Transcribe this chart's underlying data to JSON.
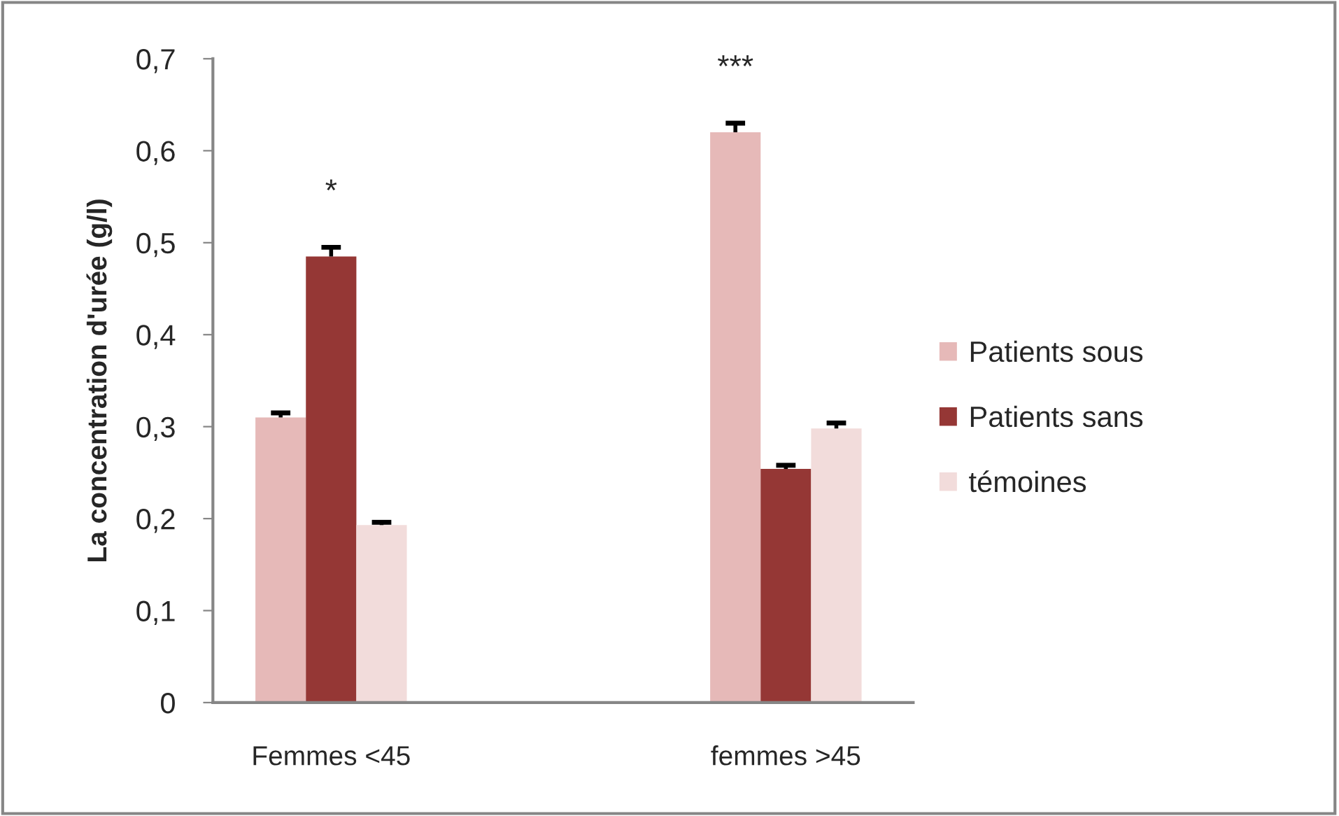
{
  "chart_data": {
    "type": "bar",
    "ylabel": "La concentration d'urée (g/l)",
    "categories": [
      "Femmes <45",
      "femmes >45"
    ],
    "series": [
      {
        "name": "Patients sous",
        "color": "#e6b9b8",
        "values": [
          0.31,
          0.62
        ],
        "errors": [
          [
            0.31,
            0.315
          ],
          [
            0.62,
            0.63
          ]
        ]
      },
      {
        "name": "Patients sans",
        "color": "#953735",
        "values": [
          0.485,
          0.254
        ],
        "errors": [
          [
            0.485,
            0.495
          ],
          [
            0.254,
            0.258
          ]
        ]
      },
      {
        "name": "témoines",
        "color": "#f2dcdb",
        "values": [
          0.193,
          0.298
        ],
        "errors": [
          [
            0.193,
            0.196
          ],
          [
            0.298,
            0.304
          ]
        ]
      }
    ],
    "ylim": [
      0,
      0.7
    ],
    "yticks": [
      0,
      {
        "value": 0.1,
        "label": "0,1"
      },
      {
        "value": 0.2,
        "label": "0,2"
      },
      {
        "value": 0.3,
        "label": "0,3"
      },
      {
        "value": 0.4,
        "label": "0,4"
      },
      {
        "value": 0.5,
        "label": "0,5"
      },
      {
        "value": 0.6,
        "label": "0,6"
      },
      {
        "value": 0.7,
        "label": "0,7"
      }
    ],
    "annotations": [
      "*",
      "***"
    ],
    "grid": false,
    "legend": "right"
  }
}
